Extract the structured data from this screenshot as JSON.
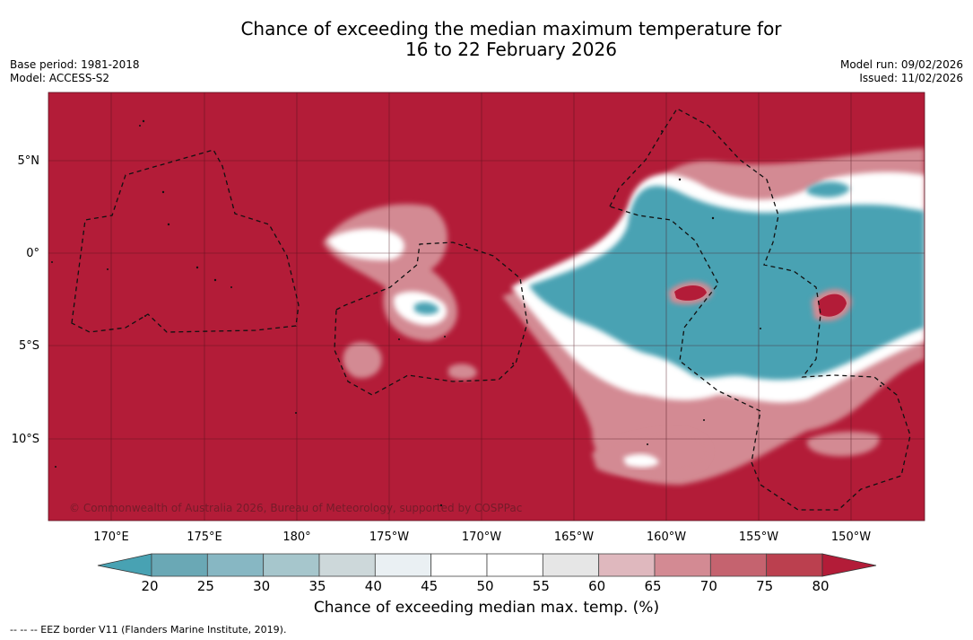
{
  "title": {
    "line1": "Chance of exceeding the median maximum temperature for",
    "line2": "16 to 22 February 2026"
  },
  "meta": {
    "base_period": "Base period: 1981-2018",
    "model": "Model: ACCESS-S2",
    "model_run": "Model run: 09/02/2026",
    "issued": "Issued: 11/02/2026"
  },
  "map": {
    "background_color": "#b31c38",
    "lon_ticks": [
      "170°E",
      "175°E",
      "180°",
      "175°W",
      "170°W",
      "165°W",
      "160°W",
      "155°W",
      "150°W"
    ],
    "lat_ticks": [
      "5°N",
      "0°",
      "5°S",
      "10°S"
    ],
    "copyright": "© Commonwealth of Australia 2026, Bureau of Meteorology, supported by COSPPac"
  },
  "colorbar": {
    "labels": [
      "20",
      "25",
      "30",
      "35",
      "40",
      "45",
      "50",
      "55",
      "60",
      "65",
      "70",
      "75",
      "80"
    ],
    "colors": [
      "#6aa8b5",
      "#87b7c3",
      "#a6c6cc",
      "#cdd8da",
      "#eaf0f3",
      "#ffffff",
      "#ffffff",
      "#e6e6e6",
      "#dfb8be",
      "#d38a93",
      "#c5636f",
      "#bb404f"
    ],
    "under_color": "#48a2b3",
    "over_color": "#b31c38",
    "title": "Chance of exceeding median max. temp. (%)"
  },
  "footnote": "--  --  -- EEZ border V11 (Flanders Marine Institute, 2019)."
}
